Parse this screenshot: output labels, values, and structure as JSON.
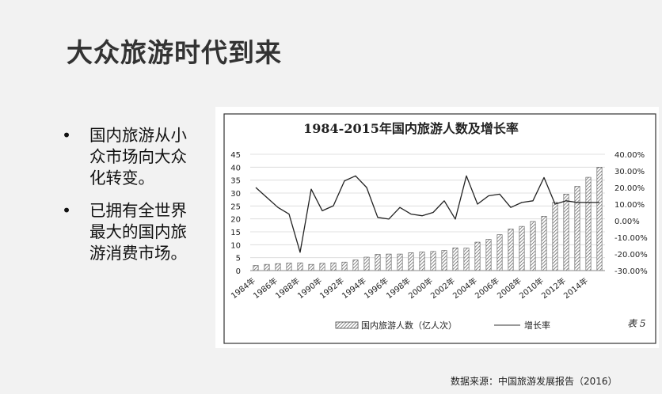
{
  "slide": {
    "title": "大众旅游时代到来",
    "bullets": [
      {
        "text": "国内旅游从小众市场向大众化转变。"
      },
      {
        "text": "已拥有全世界最大的国内旅游消费市场。"
      }
    ],
    "bullet_symbol": "•",
    "source": "数据来源：中国旅游发展报告（2016）"
  },
  "chart_data": {
    "type": "bar",
    "title": "1984-2015年国内旅游人数及增长率",
    "note": "表 5",
    "categories": [
      "1984年",
      "1985年",
      "1986年",
      "1987年",
      "1988年",
      "1989年",
      "1990年",
      "1991年",
      "1992年",
      "1993年",
      "1994年",
      "1995年",
      "1996年",
      "1997年",
      "1998年",
      "1999年",
      "2000年",
      "2001年",
      "2002年",
      "2003年",
      "2004年",
      "2005年",
      "2006年",
      "2007年",
      "2008年",
      "2009年",
      "2010年",
      "2011年",
      "2012年",
      "2013年",
      "2014年",
      "2015年"
    ],
    "x_tick_labels": [
      "1984年",
      "1986年",
      "1988年",
      "1990年",
      "1992年",
      "1994年",
      "1996年",
      "1998年",
      "2000年",
      "2002年",
      "2004年",
      "2006年",
      "2008年",
      "2010年",
      "2012年",
      "2014年"
    ],
    "series": [
      {
        "name": "国内旅游人数（亿人次）",
        "type": "bar",
        "axis": "left",
        "values": [
          2.0,
          2.4,
          2.7,
          2.9,
          3.0,
          2.4,
          2.8,
          3.0,
          3.3,
          4.1,
          5.2,
          6.3,
          6.4,
          6.4,
          6.9,
          7.2,
          7.4,
          7.8,
          8.8,
          8.7,
          11.0,
          12.1,
          13.9,
          16.1,
          17.1,
          19.0,
          21.0,
          26.4,
          29.6,
          32.6,
          36.1,
          40.0
        ]
      },
      {
        "name": "增长率",
        "type": "line",
        "axis": "right",
        "values": [
          20,
          14,
          8,
          4,
          -19,
          19,
          6,
          9,
          24,
          27,
          20,
          2,
          1,
          8,
          4,
          3,
          5,
          12,
          1,
          27,
          10,
          15,
          16,
          8,
          11,
          12,
          26,
          10,
          12,
          11,
          11,
          11
        ]
      }
    ],
    "y_left": {
      "min": 0,
      "max": 45,
      "step": 5,
      "ticks": [
        "0",
        "5",
        "10",
        "15",
        "20",
        "25",
        "30",
        "35",
        "40",
        "45"
      ]
    },
    "y_right": {
      "min": -30,
      "max": 40,
      "step": 10,
      "ticks": [
        "-30.00%",
        "-20.00%",
        "-10.00%",
        "0.00%",
        "10.00%",
        "20.00%",
        "30.00%",
        "40.00%"
      ]
    },
    "legend": {
      "position": "bottom"
    },
    "grid": true
  }
}
